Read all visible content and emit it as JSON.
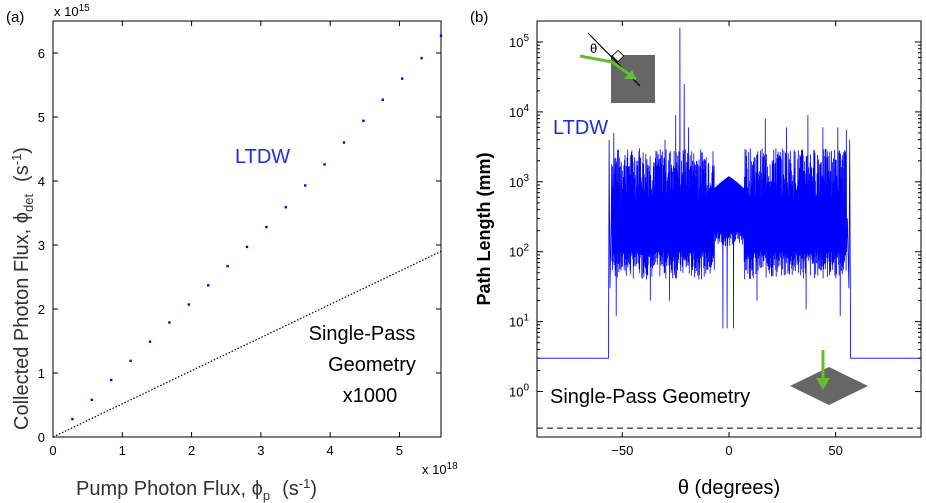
{
  "chart_data": [
    {
      "panel_label": "(a)",
      "type": "scatter",
      "xlabel": "Pump Photon Flux, ϕp (s-1)",
      "xlabel_main": "Pump Photon Flux, ϕ",
      "xlabel_sub": "p",
      "xlabel_unit_open": "(s",
      "xlabel_unit_sup": "-1",
      "xlabel_unit_close": ")",
      "ylabel": "Collected Photon Flux, ϕdet (s-1)",
      "ylabel_main": "Collected Photon Flux, ϕ",
      "ylabel_sub": "det",
      "ylabel_unit_open": "(s",
      "ylabel_unit_sup": "-1",
      "ylabel_unit_close": ")",
      "x_multiplier": "x 10",
      "x_multiplier_exp": "18",
      "y_multiplier": "x 10",
      "y_multiplier_exp": "15",
      "xlim": [
        0,
        5.6
      ],
      "ylim": [
        0,
        6.5
      ],
      "xticks": [
        0,
        1,
        2,
        3,
        4,
        5
      ],
      "yticks": [
        0,
        1,
        2,
        3,
        4,
        5,
        6
      ],
      "series": [
        {
          "name": "LTDW",
          "color": "#0000ff",
          "style": "dots",
          "x": [
            0.28,
            0.56,
            0.84,
            1.12,
            1.4,
            1.68,
            1.96,
            2.24,
            2.52,
            2.8,
            3.08,
            3.36,
            3.64,
            3.92,
            4.2,
            4.48,
            4.76,
            5.04,
            5.32,
            5.6
          ],
          "y": [
            0.28,
            0.58,
            0.89,
            1.19,
            1.49,
            1.79,
            2.07,
            2.37,
            2.67,
            2.97,
            3.28,
            3.59,
            3.93,
            4.26,
            4.6,
            4.94,
            5.27,
            5.6,
            5.92,
            6.27
          ]
        },
        {
          "name": "Single-Pass Geometry x1000",
          "color": "#000000",
          "style": "dotted",
          "x": [
            0,
            5.6
          ],
          "y": [
            0,
            2.9
          ]
        }
      ],
      "annotations": {
        "ltdw": "LTDW",
        "single_pass_line1": "Single-Pass",
        "single_pass_line2": "Geometry",
        "single_pass_line3": "x1000"
      }
    },
    {
      "panel_label": "(b)",
      "type": "line",
      "xlabel": "θ (degrees)",
      "ylabel": "Path Length (mm)",
      "xlim": [
        -90,
        90
      ],
      "ylim_log10": [
        -0.65,
        5.3
      ],
      "yscale": "log",
      "xticks": [
        -50,
        0,
        50
      ],
      "xtick_labels": [
        "−50",
        "0",
        "50"
      ],
      "yticks_exp": [
        0,
        1,
        2,
        3,
        4,
        5
      ],
      "ytick_base": "10",
      "series": [
        {
          "name": "LTDW",
          "color": "#0000ff",
          "description_levels": {
            "baseline_outside_mm": 3,
            "edge_drop_mm": 8,
            "lower_band_mm": 12,
            "typical_mm": 300,
            "max_peak_mm": 160000,
            "window_deg": [
              -57,
              57
            ]
          }
        },
        {
          "name": "Single-Pass Geometry",
          "color": "#000000",
          "style": "dashed",
          "value_mm": 0.3
        }
      ],
      "annotations": {
        "ltdw": "LTDW",
        "single_pass": "Single-Pass Geometry",
        "theta_inset": "θ"
      }
    }
  ]
}
